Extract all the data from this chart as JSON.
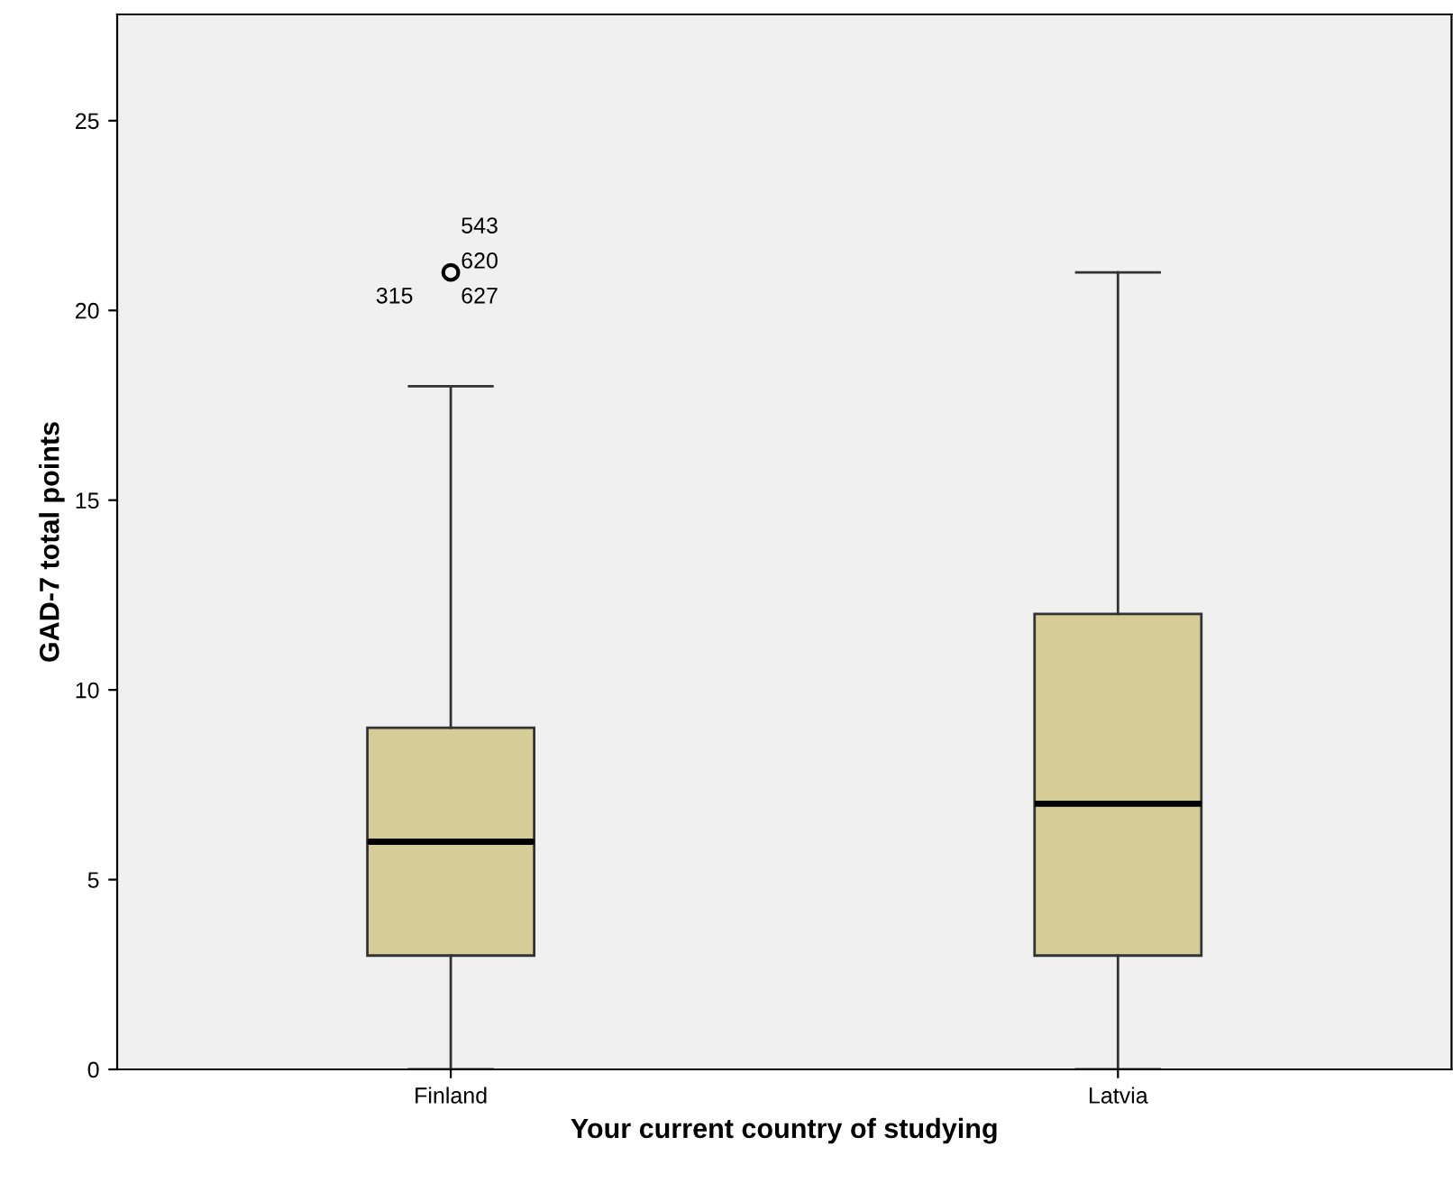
{
  "chart_data": {
    "type": "box",
    "xlabel": "Your current country of studying",
    "ylabel": "GAD-7 total points",
    "categories": [
      "Finland",
      "Latvia"
    ],
    "boxes": [
      {
        "low": 0,
        "q1": 3,
        "median": 6,
        "q3": 9,
        "high": 18,
        "outliers": [
          21
        ]
      },
      {
        "low": 0,
        "q1": 3,
        "median": 7,
        "q3": 12,
        "high": 21
      }
    ],
    "color": "#d5cc98",
    "ylim": [
      0,
      27.8
    ],
    "yticks": [
      0,
      5,
      10,
      15,
      20,
      25
    ],
    "grid": false,
    "annotations": [
      "543",
      "620",
      "315",
      "627"
    ]
  }
}
